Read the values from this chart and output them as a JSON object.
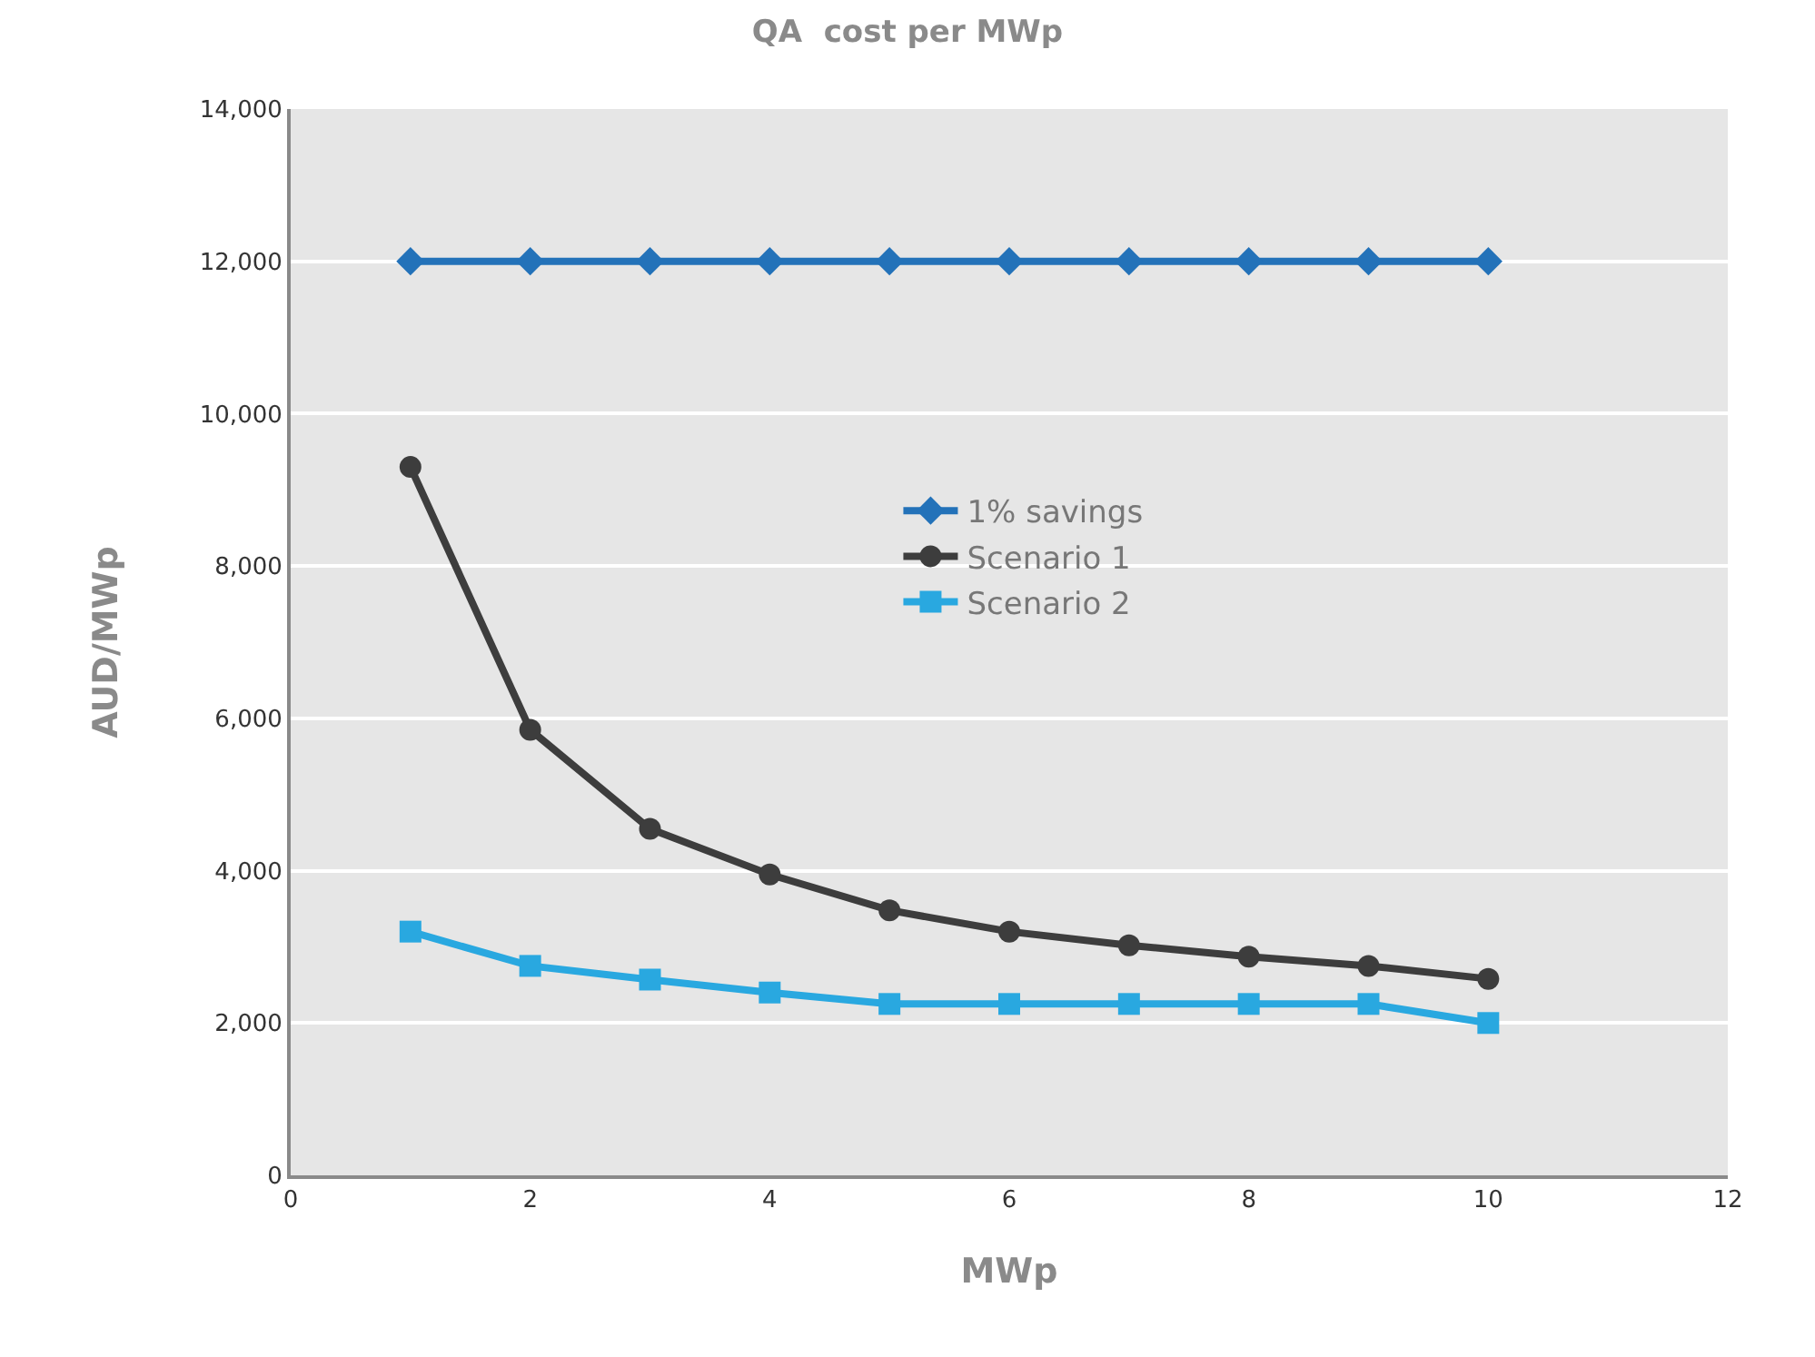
{
  "chart_data": {
    "type": "line",
    "title": "QA  cost per MWp",
    "xlabel": "MWp",
    "ylabel": "AUD/MWp",
    "x": [
      1,
      2,
      3,
      4,
      5,
      6,
      7,
      8,
      9,
      10
    ],
    "series": [
      {
        "name": "1% savings",
        "color": "#2372b9",
        "marker": "diamond",
        "values": [
          12000,
          12000,
          12000,
          12000,
          12000,
          12000,
          12000,
          12000,
          12000,
          12000
        ]
      },
      {
        "name": "Scenario 1",
        "color": "#3d3d3d",
        "marker": "circle",
        "values": [
          9300,
          5850,
          4550,
          3950,
          3480,
          3200,
          3020,
          2870,
          2750,
          2580
        ]
      },
      {
        "name": "Scenario 2",
        "color": "#29a8e0",
        "marker": "square",
        "values": [
          3200,
          2750,
          2570,
          2400,
          2250,
          2250,
          2250,
          2250,
          2250,
          2000
        ]
      }
    ],
    "xlim": [
      0,
      12
    ],
    "xticks": [
      0,
      2,
      4,
      6,
      8,
      10,
      12
    ],
    "ylim": [
      0,
      14000
    ],
    "yticks": [
      {
        "value": 0,
        "label": "0"
      },
      {
        "value": 2000,
        "label": "2,000"
      },
      {
        "value": 4000,
        "label": "4,000"
      },
      {
        "value": 6000,
        "label": "6,000"
      },
      {
        "value": 8000,
        "label": "8,000"
      },
      {
        "value": 10000,
        "label": "10,000"
      },
      {
        "value": 12000,
        "label": "12,000"
      },
      {
        "value": 14000,
        "label": "14,000"
      }
    ],
    "grid": "y",
    "legend": "center",
    "line_style": "solid"
  }
}
